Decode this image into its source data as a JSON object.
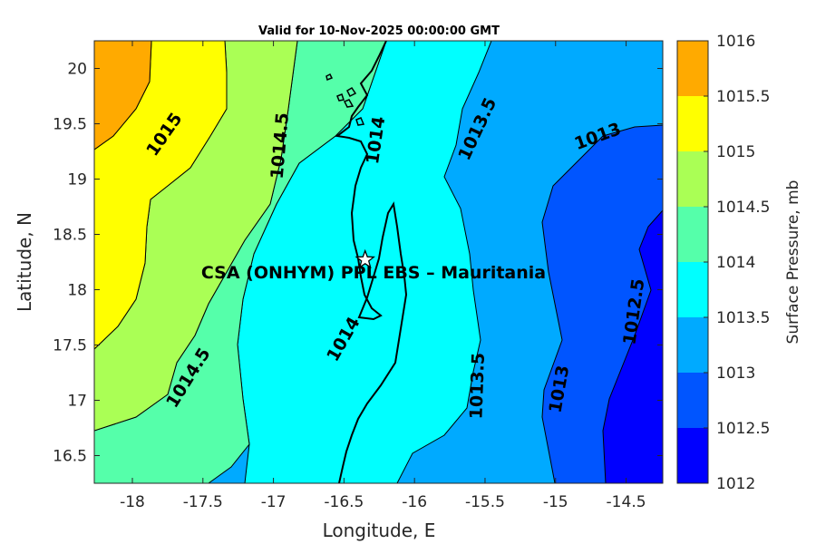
{
  "title": "Valid for 10-Nov-2025 00:00:00 GMT",
  "site_label": "CSA (ONHYM) PPL EBS  – Mauritania",
  "site_marker_icon": "star-icon",
  "axes": {
    "xlabel": "Longitude, E",
    "ylabel": "Latitude, N",
    "xlim": [
      -18.27,
      -14.24
    ],
    "ylim": [
      16.25,
      20.25
    ],
    "xticks": [
      "-18",
      "-17.5",
      "-17",
      "-16.5",
      "-16",
      "-15.5",
      "-15",
      "-14.5"
    ],
    "yticks": [
      "16.5",
      "17",
      "17.5",
      "18",
      "18.5",
      "19",
      "19.5",
      "20"
    ]
  },
  "colorbar": {
    "title": "Surface Pressure, mb",
    "levels": [
      "1012",
      "1012.5",
      "1013",
      "1013.5",
      "1014",
      "1014.5",
      "1015",
      "1015.5",
      "1016"
    ],
    "colors": [
      "#0000ff",
      "#0055ff",
      "#00aaff",
      "#00ffff",
      "#55ffaa",
      "#aaff55",
      "#ffff00",
      "#ffaa00",
      "#ff5500"
    ]
  },
  "contour_labels": [
    {
      "text": "1015",
      "lon": -17.77,
      "lat": 19.4,
      "angle": -55
    },
    {
      "text": "1014.5",
      "lon": -16.95,
      "lat": 19.3,
      "angle": -85
    },
    {
      "text": "1014",
      "lon": -16.27,
      "lat": 19.35,
      "angle": -82
    },
    {
      "text": "1013.5",
      "lon": -15.55,
      "lat": 19.45,
      "angle": -65
    },
    {
      "text": "1013",
      "lon": -14.7,
      "lat": 19.38,
      "angle": -20
    },
    {
      "text": "1014.5",
      "lon": -17.6,
      "lat": 17.2,
      "angle": -58
    },
    {
      "text": "1014",
      "lon": -16.5,
      "lat": 17.55,
      "angle": -60
    },
    {
      "text": "1013.5",
      "lon": -15.55,
      "lat": 17.13,
      "angle": -88
    },
    {
      "text": "1013",
      "lon": -14.97,
      "lat": 17.1,
      "angle": -80
    },
    {
      "text": "1012.5",
      "lon": -14.44,
      "lat": 17.8,
      "angle": -82
    }
  ],
  "site": {
    "lon": -16.35,
    "lat": 18.27
  }
}
